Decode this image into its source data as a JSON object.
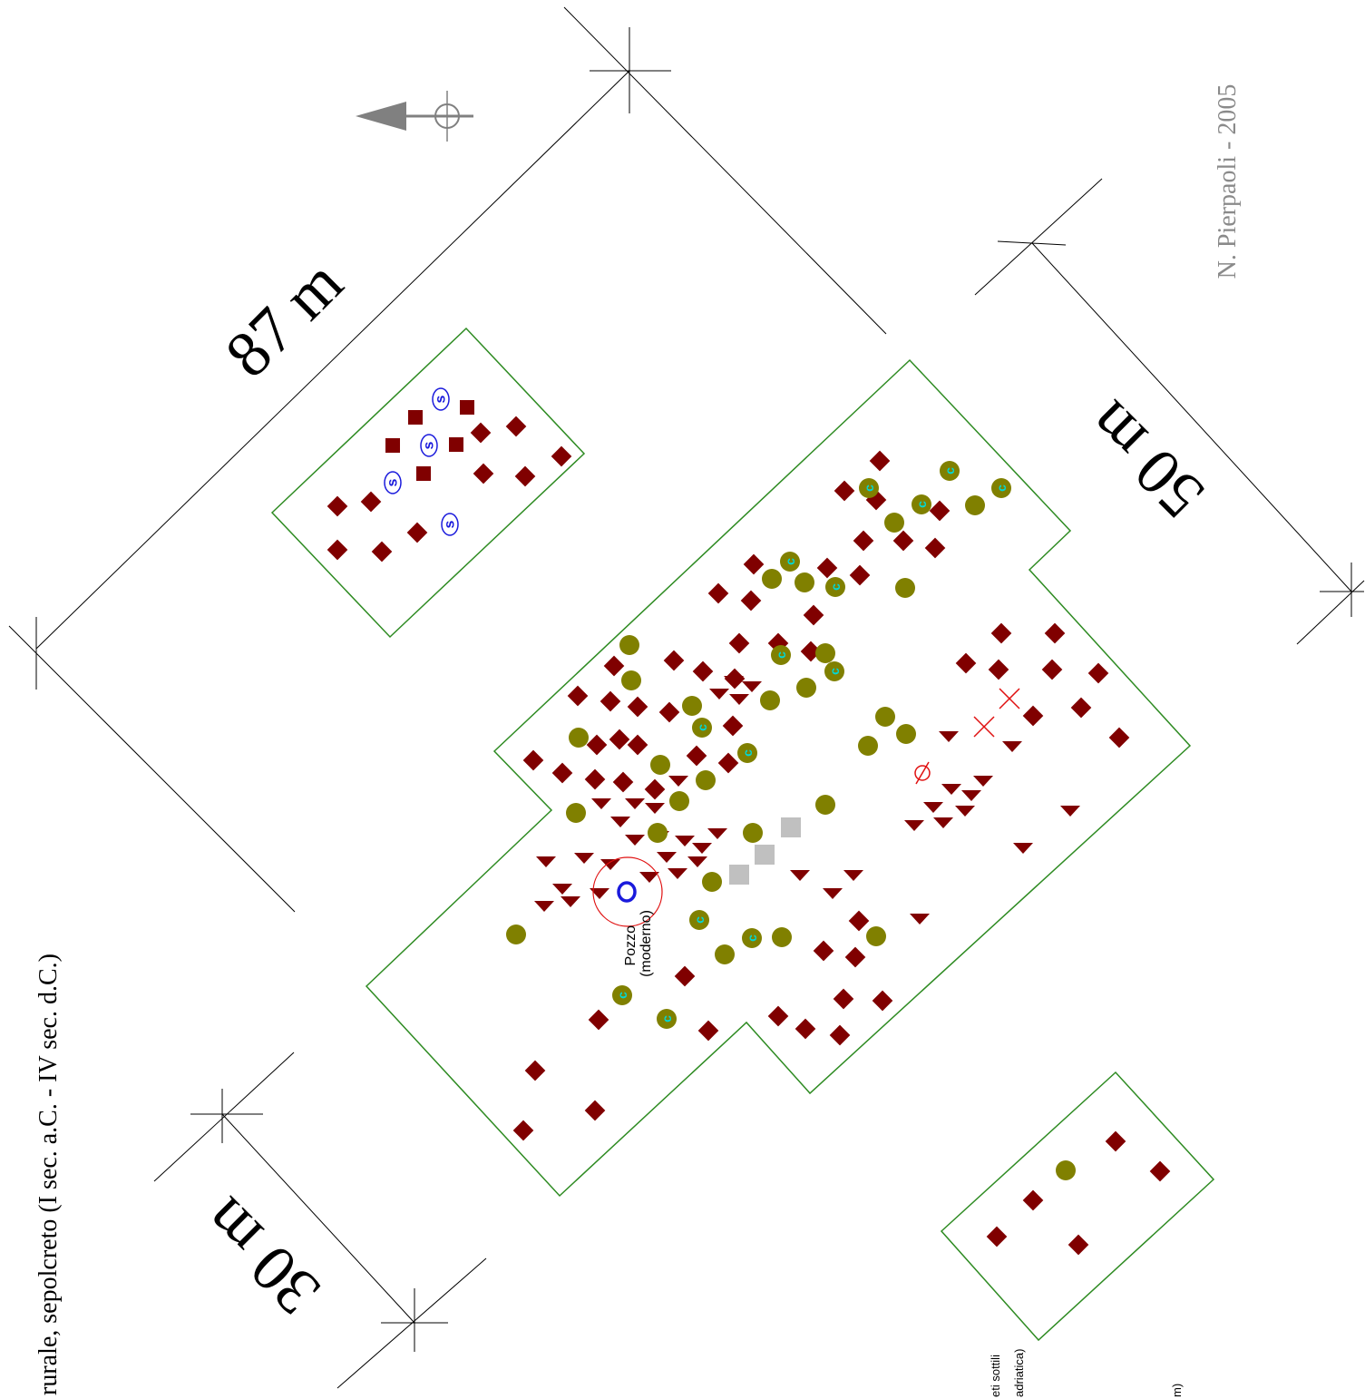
{
  "map": {
    "dimension_labels": {
      "top": "87 m",
      "right": "50 m",
      "left": "30 m"
    },
    "author_credit": "N. Pierpaoli - 2005",
    "side_caption": "rurale, sepolcreto (I sec. a.C. - IV sec. d.C.)",
    "well_label": [
      "Pozzo",
      "(moderno)"
    ],
    "legend_fragments": [
      "eti sottili",
      "adriatica)",
      "m)"
    ],
    "marker_letters": {
      "coin": "c",
      "sepulchre": "s"
    },
    "north_arrow": "north-arrow-icon",
    "colors": {
      "boundary": "#2e8b22",
      "diamond": "#800000",
      "olive": "#808000",
      "coin_letter": "#00d8d8",
      "sepulchre": "#1a1adc",
      "gray_square": "#c0c0c0",
      "red_symbol": "#e01010",
      "dim_lines": "#000000",
      "credit": "#8a8a8a"
    }
  }
}
